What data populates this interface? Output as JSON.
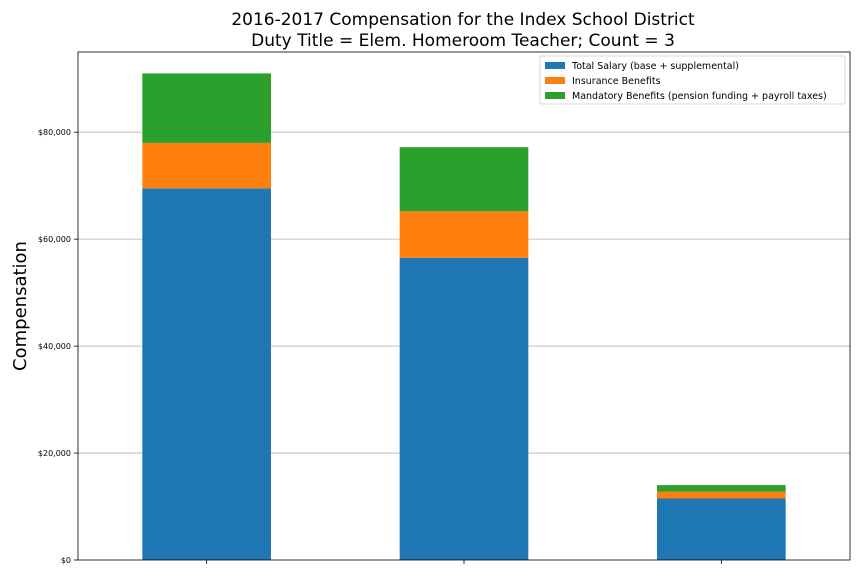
{
  "chart_data": {
    "type": "bar",
    "stacked": true,
    "title": [
      "2016-2017 Compensation for the Index School District",
      "Duty Title = Elem. Homeroom Teacher; Count = 3"
    ],
    "xlabel": "",
    "ylabel": "Compensation",
    "categories": [
      "",
      "",
      ""
    ],
    "ylim": [
      0,
      95000
    ],
    "yticks": [
      0,
      20000,
      40000,
      60000,
      80000
    ],
    "ytick_labels": [
      "$0",
      "$20,000",
      "$40,000",
      "$60,000",
      "$80,000"
    ],
    "grid": "horizontal",
    "legend_position": "top-right",
    "series": [
      {
        "name": "Total Salary (base + supplemental)",
        "color": "#1f77b4",
        "values": [
          69500,
          56500,
          11500
        ]
      },
      {
        "name": "Insurance Benefits",
        "color": "#ff7f0e",
        "values": [
          8500,
          8700,
          1300
        ]
      },
      {
        "name": "Mandatory Benefits (pension funding + payroll taxes)",
        "color": "#2ca02c",
        "values": [
          13000,
          12000,
          1200
        ]
      }
    ]
  }
}
